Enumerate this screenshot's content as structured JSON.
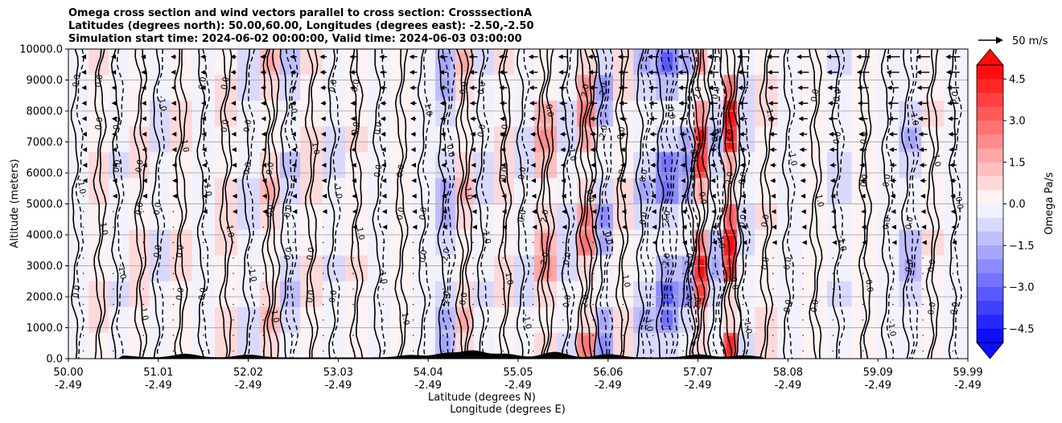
{
  "chart_data": {
    "type": "contour",
    "title": [
      "Omega cross section and wind vectors parallel to cross section: CrosssectionA",
      "Latitudes (degrees north): 50.00,60.00, Longitudes (degrees east): -2.50,-2.50",
      "Simulation start time: 2024-06-02 00:00:00, Valid time: 2024-06-03 03:00:00"
    ],
    "ylabel": "Altitude (meters)",
    "xlabel_lat": "Latitude (degrees N)",
    "xlabel_lon": "Longitude (degrees E)",
    "ylim": [
      0,
      10000
    ],
    "xlim": [
      50.0,
      59.99
    ],
    "y_ticks": [
      {
        "value": 0,
        "label": "0.0"
      },
      {
        "value": 1000,
        "label": "1000.0"
      },
      {
        "value": 2000,
        "label": "2000.0"
      },
      {
        "value": 3000,
        "label": "3000.0"
      },
      {
        "value": 4000,
        "label": "4000.0"
      },
      {
        "value": 5000,
        "label": "5000.0"
      },
      {
        "value": 6000,
        "label": "6000.0"
      },
      {
        "value": 7000,
        "label": "7000.0"
      },
      {
        "value": 8000,
        "label": "8000.0"
      },
      {
        "value": 9000,
        "label": "9000.0"
      },
      {
        "value": 10000,
        "label": "10000.0"
      }
    ],
    "x_ticks": [
      {
        "lat": "50.00",
        "lon": "-2.49"
      },
      {
        "lat": "51.01",
        "lon": "-2.49"
      },
      {
        "lat": "52.02",
        "lon": "-2.49"
      },
      {
        "lat": "53.03",
        "lon": "-2.49"
      },
      {
        "lat": "54.04",
        "lon": "-2.49"
      },
      {
        "lat": "55.05",
        "lon": "-2.49"
      },
      {
        "lat": "56.06",
        "lon": "-2.49"
      },
      {
        "lat": "57.07",
        "lon": "-2.49"
      },
      {
        "lat": "58.08",
        "lon": "-2.49"
      },
      {
        "lat": "59.09",
        "lon": "-2.49"
      },
      {
        "lat": "59.99",
        "lon": "-2.49"
      }
    ],
    "colorbar": {
      "label": "Omega Pa/s",
      "vmin": -5.0,
      "vmax": 5.0,
      "step": 0.5,
      "extend": "both",
      "ticks": [
        "4.5",
        "3.0",
        "1.5",
        "0.0",
        "−1.5",
        "−3.0",
        "−4.5"
      ],
      "tick_values": [
        4.5,
        3.0,
        1.5,
        0.0,
        -1.5,
        -3.0,
        -4.5
      ],
      "low_color": "#0000ff",
      "mid_color": "#ffffff",
      "high_color": "#ff0000"
    },
    "quiver_key": {
      "label": "50 m/s",
      "speed": 50
    },
    "wind_flow": "southward (toward decreasing latitude) in the upper levels",
    "contour_levels_labeled": [
      "-2.0",
      "-1.0",
      "0.0",
      "1.0",
      "2.0"
    ],
    "omega_columns": [
      {
        "lat": 50.1,
        "value": -0.4
      },
      {
        "lat": 50.35,
        "value": 0.8
      },
      {
        "lat": 50.55,
        "value": -0.6
      },
      {
        "lat": 50.8,
        "value": 1.0
      },
      {
        "lat": 51.0,
        "value": -0.8
      },
      {
        "lat": 51.25,
        "value": 0.7
      },
      {
        "lat": 51.5,
        "value": -0.5
      },
      {
        "lat": 51.75,
        "value": 0.9
      },
      {
        "lat": 52.0,
        "value": -0.7
      },
      {
        "lat": 52.25,
        "value": 1.2
      },
      {
        "lat": 52.45,
        "value": -1.1
      },
      {
        "lat": 52.7,
        "value": 0.8
      },
      {
        "lat": 52.95,
        "value": -0.6
      },
      {
        "lat": 53.2,
        "value": 0.6
      },
      {
        "lat": 53.45,
        "value": -0.4
      },
      {
        "lat": 53.7,
        "value": 0.5
      },
      {
        "lat": 53.95,
        "value": -0.5
      },
      {
        "lat": 54.2,
        "value": -1.5
      },
      {
        "lat": 54.4,
        "value": 1.3
      },
      {
        "lat": 54.6,
        "value": -0.6
      },
      {
        "lat": 54.85,
        "value": 0.9
      },
      {
        "lat": 55.05,
        "value": -0.8
      },
      {
        "lat": 55.3,
        "value": 1.8
      },
      {
        "lat": 55.55,
        "value": -0.9
      },
      {
        "lat": 55.75,
        "value": 2.2
      },
      {
        "lat": 55.95,
        "value": -1.6
      },
      {
        "lat": 56.15,
        "value": 0.8
      },
      {
        "lat": 56.4,
        "value": -1.3
      },
      {
        "lat": 56.65,
        "value": -2.4
      },
      {
        "lat": 56.9,
        "value": -1.8
      },
      {
        "lat": 57.0,
        "value": 3.6
      },
      {
        "lat": 57.2,
        "value": -1.2
      },
      {
        "lat": 57.35,
        "value": 4.4
      },
      {
        "lat": 57.5,
        "value": -1.0
      },
      {
        "lat": 57.75,
        "value": 0.7
      },
      {
        "lat": 58.0,
        "value": -0.4
      },
      {
        "lat": 58.3,
        "value": 0.5
      },
      {
        "lat": 58.55,
        "value": -0.6
      },
      {
        "lat": 58.85,
        "value": 0.4
      },
      {
        "lat": 59.1,
        "value": -0.5
      },
      {
        "lat": 59.35,
        "value": -1.2
      },
      {
        "lat": 59.6,
        "value": 0.6
      },
      {
        "lat": 59.85,
        "value": -0.3
      }
    ]
  }
}
